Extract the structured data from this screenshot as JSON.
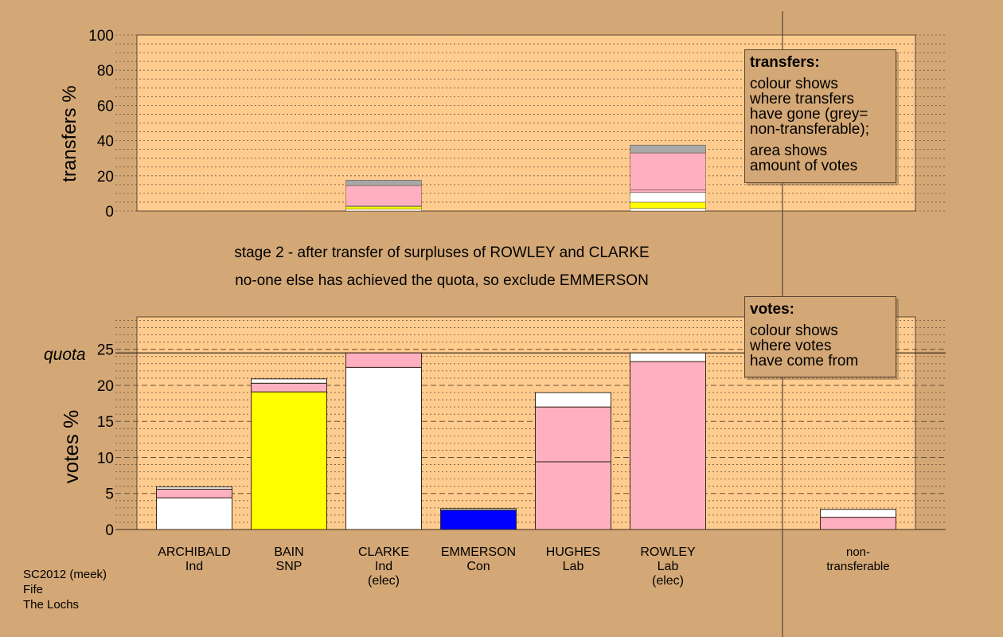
{
  "captions": {
    "line1": "stage 2 - after transfer of surpluses of ROWLEY and CLARKE",
    "line2": "no-one else has achieved the quota, so exclude EMMERSON"
  },
  "legend_transfers": {
    "title": "transfers:",
    "lines_a": [
      "colour shows",
      "where transfers",
      "have gone (grey=",
      "non-transferable);"
    ],
    "lines_b": [
      "area shows",
      "amount of votes"
    ]
  },
  "legend_votes": {
    "title": "votes:",
    "lines": [
      "colour shows",
      "where votes",
      "have come from"
    ]
  },
  "footer": {
    "line1": "SC2012 (meek)",
    "line2": "Fife",
    "line3": "The Lochs"
  },
  "colors": {
    "background": "#d4a876",
    "plot_area": "#ffcc8f",
    "Ind": "#ffffff",
    "SNP": "#ffff00",
    "Con": "#0000ff",
    "Lab": "#ffb0c0",
    "non_transferable": "#a8a8a8"
  },
  "chart_data": [
    {
      "type": "bar",
      "stacked": true,
      "ylabel": "transfers %",
      "ylim": [
        0,
        100
      ],
      "yticks": [
        0,
        20,
        40,
        60,
        80,
        100
      ],
      "categories": [
        "ARCHIBALD",
        "BAIN",
        "CLARKE",
        "EMMERSON",
        "HUGHES",
        "ROWLEY",
        "non-transferable"
      ],
      "bars": [
        {
          "category": "CLARKE",
          "segments": [
            {
              "color": "Ind",
              "value": 1.0
            },
            {
              "color": "SNP",
              "value": 1.5
            },
            {
              "color": "Ind",
              "value": 0.5
            },
            {
              "color": "Lab",
              "value": 11.5
            },
            {
              "color": "non_transferable",
              "value": 3.0
            }
          ]
        },
        {
          "category": "ROWLEY",
          "segments": [
            {
              "color": "Ind",
              "value": 1.5
            },
            {
              "color": "SNP",
              "value": 3.5
            },
            {
              "color": "Ind",
              "value": 5.5
            },
            {
              "color": "Lab",
              "value": 1.5
            },
            {
              "color": "Lab",
              "value": 21.0
            },
            {
              "color": "non_transferable",
              "value": 4.5
            }
          ]
        }
      ]
    },
    {
      "type": "bar",
      "stacked": true,
      "ylabel": "votes %",
      "ylim": [
        0,
        29.5
      ],
      "yticks": [
        0,
        5,
        10,
        15,
        20,
        25
      ],
      "quota": 24.5,
      "quota_label": "quota",
      "categories": [
        {
          "name": "ARCHIBALD",
          "party": "Ind",
          "note": ""
        },
        {
          "name": "BAIN",
          "party": "SNP",
          "note": ""
        },
        {
          "name": "CLARKE",
          "party": "Ind",
          "note": "(elec)"
        },
        {
          "name": "EMMERSON",
          "party": "Con",
          "note": ""
        },
        {
          "name": "HUGHES",
          "party": "Lab",
          "note": ""
        },
        {
          "name": "ROWLEY",
          "party": "Lab",
          "note": "(elec)"
        },
        {
          "name": "non-",
          "party": "transferable",
          "note": ""
        }
      ],
      "bars": [
        {
          "category": "ARCHIBALD",
          "segments": [
            {
              "color": "Ind",
              "value": 4.4
            },
            {
              "color": "Lab",
              "value": 1.2
            },
            {
              "color": "Ind",
              "value": 0.3
            }
          ]
        },
        {
          "category": "BAIN",
          "segments": [
            {
              "color": "SNP",
              "value": 19.1
            },
            {
              "color": "Lab",
              "value": 1.2
            },
            {
              "color": "Ind",
              "value": 0.6
            }
          ]
        },
        {
          "category": "CLARKE",
          "segments": [
            {
              "color": "Ind",
              "value": 22.5
            },
            {
              "color": "Lab",
              "value": 2.0
            }
          ]
        },
        {
          "category": "EMMERSON",
          "segments": [
            {
              "color": "Con",
              "value": 2.7
            },
            {
              "color": "Ind",
              "value": 0.2
            }
          ]
        },
        {
          "category": "HUGHES",
          "segments": [
            {
              "color": "Lab",
              "value": 9.4
            },
            {
              "color": "Lab",
              "value": 7.6
            },
            {
              "color": "Ind",
              "value": 2.0
            }
          ]
        },
        {
          "category": "ROWLEY",
          "segments": [
            {
              "color": "Lab",
              "value": 23.3
            },
            {
              "color": "Ind",
              "value": 1.2
            }
          ]
        },
        {
          "category": "non-transferable",
          "segments": [
            {
              "color": "Lab",
              "value": 1.7
            },
            {
              "color": "Ind",
              "value": 1.1
            }
          ]
        }
      ]
    }
  ]
}
